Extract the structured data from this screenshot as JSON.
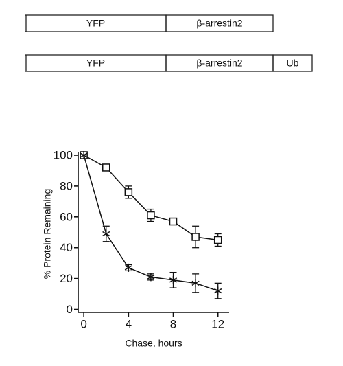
{
  "constructs": [
    {
      "segments": [
        "YFP",
        "β-arrestin2"
      ]
    },
    {
      "segments": [
        "YFP",
        "β-arrestin2",
        "Ub"
      ]
    }
  ],
  "chart_data": {
    "type": "line",
    "x_label": "Chase, hours",
    "y_label": "% Protein Remaining",
    "x": [
      0,
      2,
      4,
      6,
      8,
      10,
      12
    ],
    "series": [
      {
        "marker": "square",
        "color": "#111111",
        "values": [
          100,
          92,
          76,
          61,
          57,
          47,
          45
        ],
        "errors": [
          0,
          2,
          4,
          4,
          1,
          7,
          4
        ]
      },
      {
        "marker": "star",
        "color": "#111111",
        "values": [
          100,
          49,
          27,
          21,
          19,
          17,
          12
        ],
        "errors": [
          0,
          5,
          2,
          2,
          5,
          6,
          5
        ]
      }
    ],
    "xlim": [
      -0.5,
      13
    ],
    "ylim": [
      -2,
      100
    ],
    "xticks": [
      0,
      4,
      8,
      12
    ],
    "yticks": [
      0,
      20,
      40,
      60,
      80,
      100
    ],
    "grid": false
  }
}
